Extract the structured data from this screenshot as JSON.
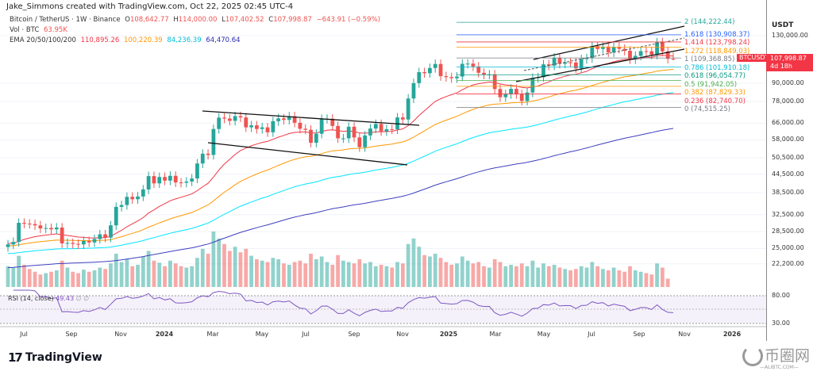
{
  "header": {
    "credit": "Jake_Simmons created with TradingView.com, Oct 22, 2025 02:45 UTC-4",
    "symbol": "Bitcoin / TetherUS · 1W · Binance",
    "o_label": "O",
    "o": "108,642.77",
    "h_label": "H",
    "h": "114,000.00",
    "l_label": "L",
    "l": "107,402.52",
    "c_label": "C",
    "c": "107,998.87",
    "change": "−643.91 (−0.59%)",
    "vol_label": "Vol · BTC",
    "vol": "63.95K",
    "ema_label": "EMA 20/50/100/200",
    "ema20": "110,895.26",
    "ema50": "100,220.39",
    "ema100": "84,236.39",
    "ema200": "64,470.64"
  },
  "price_axis": {
    "currency": "USDT",
    "labels": [
      "130,000.00",
      "90,000.00",
      "78,000.00",
      "66,000.00",
      "58,000.00",
      "50,500.00",
      "44,500.00",
      "38,500.00",
      "32,500.00",
      "28,500.00",
      "25,000.00",
      "22,200.00"
    ],
    "values": [
      130000,
      90000,
      78000,
      66000,
      58000,
      50500,
      44500,
      38500,
      32500,
      28500,
      25000,
      22200
    ]
  },
  "price_tag": {
    "symbol": "BTCUSDT",
    "price": "107,998.87",
    "countdown": "4d 18h"
  },
  "rsi": {
    "label": "RSI (14, close)",
    "value": "49.43",
    "extra": "∅ ∅",
    "levels": [
      "80.00",
      "30.00"
    ]
  },
  "time_axis": [
    "Jul",
    "Sep",
    "Nov",
    "2024",
    "Mar",
    "May",
    "Jul",
    "Sep",
    "Nov",
    "2025",
    "Mar",
    "May",
    "Jul",
    "Sep",
    "Nov",
    "2026"
  ],
  "fib": [
    {
      "label": "2 (144,222.44)",
      "price": 144222.44,
      "color": "#26a69a"
    },
    {
      "label": "1.618 (130,908.37)",
      "price": 130908.37,
      "color": "#2962ff"
    },
    {
      "label": "1.414 (123,798.24)",
      "price": 123798.24,
      "color": "#f23645"
    },
    {
      "label": "1.272 (118,849.03)",
      "price": 118849.03,
      "color": "#ff9800"
    },
    {
      "label": "1 (109,368.85)",
      "price": 109368.85,
      "color": "#787b86"
    },
    {
      "label": "0.786 (101,910.18)",
      "price": 101910.18,
      "color": "#00bcd4"
    },
    {
      "label": "0.618 (96,054.77)",
      "price": 96054.77,
      "color": "#089981"
    },
    {
      "label": "0.5 (91,942.05)",
      "price": 91942.05,
      "color": "#4caf50"
    },
    {
      "label": "0.382 (87,829.33)",
      "price": 87829.33,
      "color": "#ff9800"
    },
    {
      "label": "0.236 (82,740.70)",
      "price": 82740.7,
      "color": "#f23645"
    },
    {
      "label": "0 (74,515.25)",
      "price": 74515.25,
      "color": "#787b86"
    }
  ],
  "footer": {
    "brand": "TradingView",
    "watermark": "币圈网",
    "watermark_sub": "—ALIBTC.COM—"
  },
  "chart_data": {
    "type": "candlestick",
    "title": "Bitcoin / TetherUS · 1W · Binance",
    "yscale": "log",
    "ylim": [
      21000,
      150000
    ],
    "x_range": [
      "2023-06",
      "2026-01"
    ],
    "closes": [
      25800,
      26300,
      30500,
      30300,
      30200,
      29900,
      29200,
      29300,
      29000,
      29400,
      26000,
      26100,
      25900,
      25800,
      26500,
      26200,
      26900,
      27900,
      27200,
      29900,
      34500,
      35000,
      37300,
      36600,
      37400,
      39500,
      43800,
      41400,
      43500,
      42300,
      43900,
      41700,
      41600,
      42000,
      43000,
      48300,
      52100,
      51600,
      63100,
      68900,
      68400,
      67200,
      69700,
      69000,
      63900,
      64900,
      63100,
      63900,
      61500,
      67000,
      68500,
      67700,
      69600,
      66200,
      63200,
      62700,
      56700,
      60800,
      68200,
      68300,
      64600,
      58700,
      58700,
      64200,
      59100,
      54800,
      60000,
      63300,
      65600,
      62000,
      63000,
      62900,
      69000,
      67900,
      79900,
      90000,
      98000,
      97200,
      101200,
      104400,
      95000,
      94300,
      93500,
      94700,
      104500,
      104700,
      102400,
      97500,
      96100,
      96300,
      86000,
      80700,
      82600,
      86100,
      82600,
      78400,
      83700,
      93700,
      94200,
      104100,
      103100,
      109600,
      104600,
      105700,
      105600,
      100900,
      108400,
      109200,
      119800,
      117300,
      119400,
      114200,
      119300,
      117400,
      115700,
      108200,
      111200,
      115300,
      115200,
      112200,
      123500,
      115100,
      108643,
      107999
    ],
    "last_candle": {
      "open": 108642.77,
      "high": 114000.0,
      "low": 107402.52,
      "close": 107998.87
    },
    "volume": [
      30,
      28,
      45,
      32,
      26,
      22,
      18,
      20,
      22,
      24,
      38,
      28,
      22,
      20,
      25,
      22,
      24,
      28,
      26,
      34,
      48,
      36,
      40,
      30,
      32,
      44,
      52,
      38,
      35,
      30,
      38,
      34,
      30,
      28,
      30,
      42,
      55,
      48,
      80,
      70,
      62,
      52,
      58,
      50,
      55,
      45,
      40,
      38,
      36,
      42,
      40,
      34,
      32,
      36,
      38,
      34,
      48,
      40,
      44,
      36,
      32,
      46,
      38,
      36,
      34,
      40,
      34,
      36,
      30,
      32,
      30,
      28,
      36,
      34,
      62,
      70,
      58,
      46,
      44,
      48,
      42,
      36,
      32,
      34,
      44,
      38,
      34,
      36,
      30,
      28,
      40,
      36,
      30,
      32,
      30,
      34,
      30,
      38,
      28,
      34,
      30,
      32,
      28,
      26,
      24,
      26,
      30,
      28,
      36,
      30,
      26,
      24,
      28,
      24,
      22,
      30,
      24,
      22,
      20,
      18,
      34,
      28,
      12
    ],
    "ema_colors": {
      "ema20": "#f23645",
      "ema50": "#ff9800",
      "ema100": "#00e5ff",
      "ema200": "#3f3fbf"
    },
    "up_color": "#26a69a",
    "down_color": "#ef5350"
  }
}
